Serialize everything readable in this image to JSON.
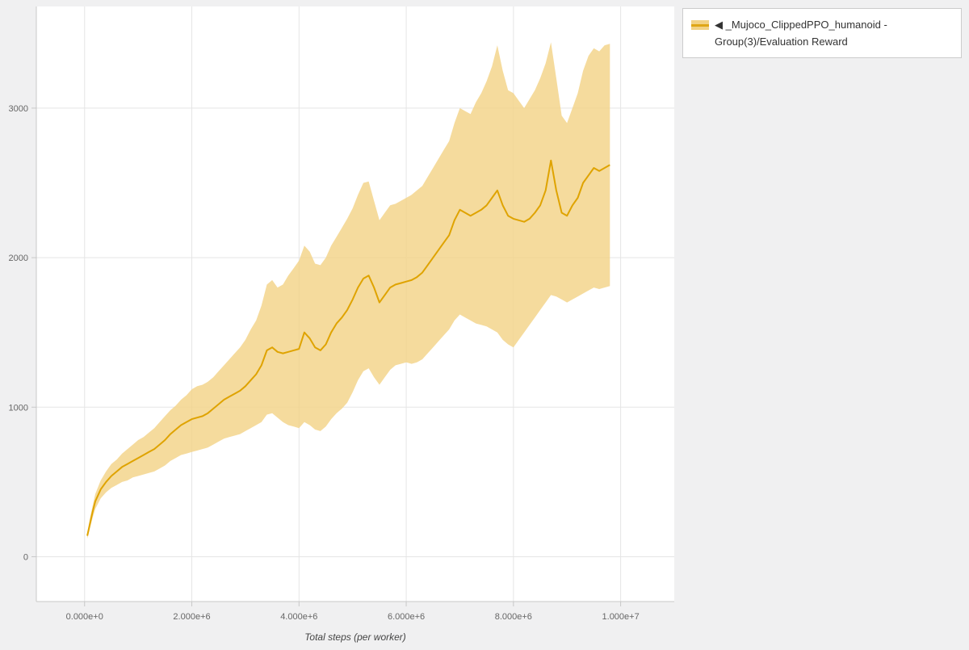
{
  "legend": {
    "label": "◀ _Mujoco_ClippedPPO_humanoid - Group(3)/Evaluation Reward"
  },
  "colors": {
    "line": "#dfa300",
    "band": "#f2d285",
    "grid": "#e5e5e5",
    "axis": "#c8c8c8",
    "tick_text": "#666666",
    "plot_bg": "#ffffff",
    "page_bg": "#f0f0f1"
  },
  "chart_data": {
    "type": "line",
    "title": "",
    "xlabel": "Total steps (per worker)",
    "ylabel": "",
    "xlim": [
      -900000,
      11000000
    ],
    "ylim": [
      -300,
      3680
    ],
    "grid": true,
    "legend_position": "outside-right",
    "x_unit": 1000000,
    "x_ticks": {
      "values": [
        0,
        2000000,
        4000000,
        6000000,
        8000000,
        10000000
      ],
      "labels": [
        "0.000e+0",
        "2.000e+6",
        "4.000e+6",
        "6.000e+6",
        "8.000e+6",
        "1.000e+7"
      ]
    },
    "y_ticks": {
      "values": [
        0,
        1000,
        2000,
        3000
      ],
      "labels": [
        "0",
        "1000",
        "2000",
        "3000"
      ]
    },
    "series": [
      {
        "name": "_Mujoco_ClippedPPO_humanoid - Group(3)/Evaluation Reward",
        "line_color": "#dfa300",
        "band_color": "#f2d285",
        "x": [
          0.05,
          0.1,
          0.15,
          0.2,
          0.3,
          0.4,
          0.5,
          0.6,
          0.7,
          0.8,
          0.9,
          1.0,
          1.1,
          1.2,
          1.3,
          1.4,
          1.5,
          1.6,
          1.7,
          1.8,
          1.9,
          2.0,
          2.1,
          2.2,
          2.3,
          2.4,
          2.5,
          2.6,
          2.7,
          2.8,
          2.9,
          3.0,
          3.1,
          3.2,
          3.3,
          3.4,
          3.5,
          3.6,
          3.7,
          3.8,
          3.9,
          4.0,
          4.1,
          4.2,
          4.3,
          4.4,
          4.5,
          4.6,
          4.7,
          4.8,
          4.9,
          5.0,
          5.1,
          5.2,
          5.3,
          5.4,
          5.5,
          5.6,
          5.7,
          5.8,
          5.9,
          6.0,
          6.1,
          6.2,
          6.3,
          6.4,
          6.5,
          6.6,
          6.7,
          6.8,
          6.9,
          7.0,
          7.1,
          7.2,
          7.3,
          7.4,
          7.5,
          7.6,
          7.7,
          7.8,
          7.9,
          8.0,
          8.1,
          8.2,
          8.3,
          8.4,
          8.5,
          8.6,
          8.7,
          8.8,
          8.9,
          9.0,
          9.1,
          9.2,
          9.3,
          9.4,
          9.5,
          9.6,
          9.7,
          9.8
        ],
        "mean": [
          140,
          220,
          300,
          370,
          450,
          500,
          540,
          570,
          600,
          620,
          640,
          660,
          680,
          700,
          720,
          750,
          780,
          820,
          850,
          880,
          900,
          920,
          930,
          940,
          960,
          990,
          1020,
          1050,
          1070,
          1090,
          1110,
          1140,
          1180,
          1220,
          1280,
          1380,
          1400,
          1370,
          1360,
          1370,
          1380,
          1390,
          1500,
          1460,
          1400,
          1380,
          1420,
          1500,
          1560,
          1600,
          1650,
          1720,
          1800,
          1860,
          1880,
          1800,
          1700,
          1750,
          1800,
          1820,
          1830,
          1840,
          1850,
          1870,
          1900,
          1950,
          2000,
          2050,
          2100,
          2150,
          2250,
          2320,
          2300,
          2280,
          2300,
          2320,
          2350,
          2400,
          2450,
          2350,
          2280,
          2260,
          2250,
          2240,
          2260,
          2300,
          2350,
          2450,
          2650,
          2450,
          2300,
          2280,
          2350,
          2400,
          2500,
          2550,
          2600,
          2580,
          2600,
          2620
        ],
        "lower": [
          120,
          190,
          260,
          320,
          390,
          430,
          460,
          480,
          500,
          510,
          530,
          540,
          550,
          560,
          570,
          590,
          610,
          640,
          660,
          680,
          690,
          700,
          710,
          720,
          730,
          750,
          770,
          790,
          800,
          810,
          820,
          840,
          860,
          880,
          900,
          950,
          960,
          930,
          900,
          880,
          870,
          860,
          900,
          880,
          850,
          840,
          870,
          920,
          960,
          990,
          1030,
          1100,
          1180,
          1240,
          1260,
          1200,
          1150,
          1200,
          1250,
          1280,
          1290,
          1300,
          1290,
          1300,
          1320,
          1360,
          1400,
          1440,
          1480,
          1520,
          1580,
          1620,
          1600,
          1580,
          1560,
          1550,
          1540,
          1520,
          1500,
          1450,
          1420,
          1400,
          1450,
          1500,
          1550,
          1600,
          1650,
          1700,
          1750,
          1740,
          1720,
          1700,
          1720,
          1740,
          1760,
          1780,
          1800,
          1790,
          1800,
          1810
        ],
        "upper": [
          160,
          260,
          340,
          420,
          510,
          570,
          620,
          650,
          690,
          720,
          750,
          780,
          800,
          830,
          860,
          900,
          940,
          980,
          1010,
          1050,
          1080,
          1120,
          1140,
          1150,
          1170,
          1200,
          1240,
          1280,
          1320,
          1360,
          1400,
          1450,
          1520,
          1580,
          1680,
          1820,
          1850,
          1800,
          1820,
          1880,
          1930,
          1980,
          2080,
          2040,
          1960,
          1950,
          2000,
          2080,
          2140,
          2200,
          2260,
          2330,
          2420,
          2500,
          2510,
          2380,
          2250,
          2300,
          2350,
          2360,
          2380,
          2400,
          2420,
          2450,
          2480,
          2540,
          2600,
          2660,
          2720,
          2780,
          2900,
          3000,
          2980,
          2960,
          3040,
          3100,
          3180,
          3280,
          3420,
          3250,
          3120,
          3100,
          3050,
          3000,
          3060,
          3120,
          3200,
          3300,
          3440,
          3200,
          2950,
          2900,
          3000,
          3100,
          3250,
          3350,
          3400,
          3380,
          3420,
          3430
        ]
      }
    ]
  }
}
